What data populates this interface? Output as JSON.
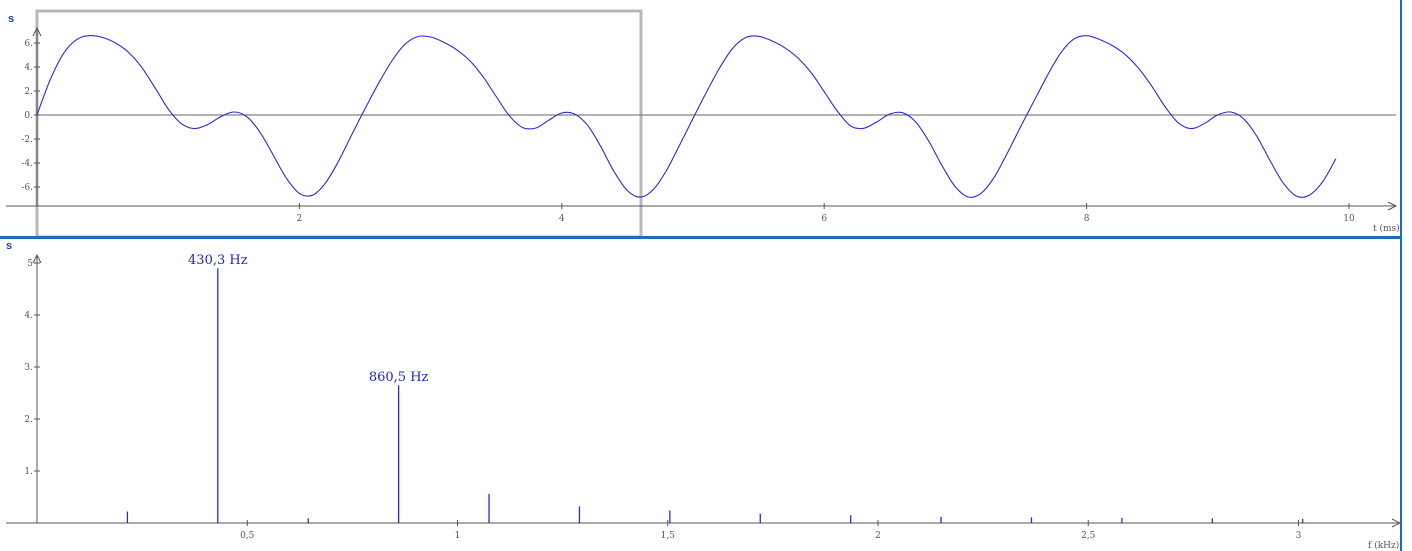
{
  "colors": {
    "signal": "#2a2ad8",
    "axis": "#555555",
    "zero_line": "#666666",
    "selection_frame": "#b8b8b8",
    "divider": "#1f6bc4"
  },
  "chart_data": [
    {
      "type": "line",
      "ylabel": "s",
      "xlabel": "t (ms)",
      "xlim": [
        0,
        10
      ],
      "ylim": [
        -6.9,
        6.9
      ],
      "x_ticks": [
        {
          "v": 2,
          "label": "2"
        },
        {
          "v": 4,
          "label": "4"
        },
        {
          "v": 6,
          "label": "6"
        },
        {
          "v": 8,
          "label": "8"
        },
        {
          "v": 10,
          "label": "10"
        }
      ],
      "y_ticks": [
        {
          "v": 6,
          "label": "6."
        },
        {
          "v": 4,
          "label": "4."
        },
        {
          "v": 2,
          "label": "2."
        },
        {
          "v": 0,
          "label": "0."
        },
        {
          "v": -2,
          "label": "-2."
        },
        {
          "v": -4,
          "label": "-4."
        },
        {
          "v": -6,
          "label": "-6."
        }
      ],
      "selection_ms": [
        0,
        4.6
      ],
      "series": [
        {
          "x": [
            0,
            0.1,
            0.2,
            0.3,
            0.4,
            0.5,
            0.6,
            0.7,
            0.8,
            0.9,
            1.0,
            1.1,
            1.2,
            1.3,
            1.4,
            1.5,
            1.6,
            1.7,
            1.8,
            1.9,
            2.0,
            2.1,
            2.2,
            2.3,
            2.4,
            2.5,
            2.6,
            2.7,
            2.8,
            2.9,
            3.0,
            3.1,
            3.2,
            3.3,
            3.4,
            3.5,
            3.6,
            3.7,
            3.8,
            3.9,
            4.0,
            4.1,
            4.2,
            4.3,
            4.4,
            4.5,
            4.6,
            4.7,
            4.8,
            4.9,
            5.0,
            5.1,
            5.2,
            5.3,
            5.4,
            5.5,
            5.6,
            5.7,
            5.8,
            5.9,
            6.0,
            6.1,
            6.2,
            6.3,
            6.4,
            6.5,
            6.6,
            6.7,
            6.8,
            6.9,
            7.0,
            7.1,
            7.2,
            7.3,
            7.4,
            7.5,
            7.6,
            7.7,
            7.8,
            7.9,
            8.0,
            8.1,
            8.2,
            8.3,
            8.4,
            8.5,
            8.6,
            8.7,
            8.8,
            8.9,
            9.0,
            9.1,
            9.2,
            9.3,
            9.4,
            9.5,
            9.6,
            9.7,
            9.8,
            9.9
          ],
          "values": [
            0.0,
            2.92,
            5.09,
            6.27,
            6.62,
            6.46,
            5.99,
            5.2,
            3.94,
            2.26,
            0.51,
            -0.72,
            -1.13,
            -0.8,
            -0.14,
            0.25,
            -0.15,
            -1.44,
            -3.33,
            -5.26,
            -6.53,
            -6.68,
            -5.65,
            -3.81,
            -1.62,
            0.52,
            2.57,
            4.42,
            5.84,
            6.53,
            6.5,
            6.07,
            5.43,
            4.51,
            3.18,
            1.54,
            -0.06,
            -1.04,
            -1.09,
            -0.44,
            0.17,
            0.07,
            -0.9,
            -2.69,
            -4.75,
            -6.3,
            -6.84,
            -6.18,
            -4.58,
            -2.46,
            -0.28,
            1.84,
            3.87,
            5.53,
            6.45,
            6.56,
            6.18,
            5.6,
            4.75,
            3.54,
            1.94,
            0.33,
            -0.9,
            -1.11,
            -0.58,
            0.08,
            0.18,
            -0.61,
            -2.24,
            -4.26,
            -5.99,
            -6.83,
            -6.49,
            -5.11,
            -3.08,
            -0.92,
            1.18,
            3.27,
            5.13,
            6.31,
            6.61,
            6.29,
            5.76,
            4.98,
            3.85,
            2.35,
            0.67,
            -0.66,
            -1.13,
            -0.69,
            0.01,
            0.25,
            -0.35,
            -1.82,
            -3.84,
            -5.68,
            -6.76,
            -6.67,
            -5.55,
            -3.64
          ]
        }
      ]
    },
    {
      "type": "bar",
      "ylabel": "s",
      "xlabel": "f (kHz)",
      "xlim": [
        0,
        3.15
      ],
      "ylim": [
        0,
        5.1
      ],
      "x_ticks": [
        {
          "v": 0.5,
          "label": "0,5"
        },
        {
          "v": 1,
          "label": "1"
        },
        {
          "v": 1.5,
          "label": "1,5"
        },
        {
          "v": 2,
          "label": "2"
        },
        {
          "v": 2.5,
          "label": "2,5"
        },
        {
          "v": 3,
          "label": "3"
        }
      ],
      "y_ticks": [
        {
          "v": 5,
          "label": "5"
        },
        {
          "v": 4,
          "label": "4."
        },
        {
          "v": 3,
          "label": "3."
        },
        {
          "v": 2,
          "label": "2."
        },
        {
          "v": 1,
          "label": "1."
        }
      ],
      "x": [
        0.215,
        0.43,
        0.645,
        0.86,
        1.075,
        1.29,
        1.505,
        1.72,
        1.935,
        2.15,
        2.365,
        2.58,
        2.795,
        3.01
      ],
      "values": [
        0.22,
        4.9,
        0.09,
        2.65,
        0.56,
        0.32,
        0.24,
        0.18,
        0.15,
        0.12,
        0.11,
        0.1,
        0.09,
        0.08
      ],
      "annotations": [
        {
          "x": 0.43,
          "label": "430,3 Hz"
        },
        {
          "x": 0.86,
          "label": "860,5 Hz"
        }
      ]
    }
  ]
}
